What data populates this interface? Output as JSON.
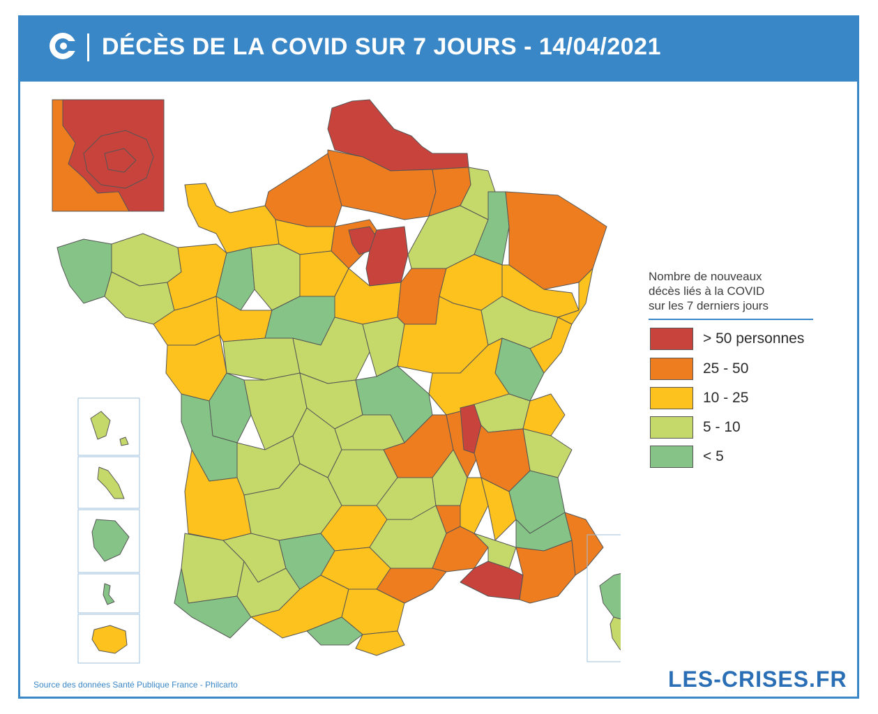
{
  "header": {
    "title": "DÉCÈS DE LA COVID SUR 7 JOURS - 14/04/2021",
    "logo_icon": "les-crises-logo-icon"
  },
  "colors": {
    "header_bg": "#3a87c7",
    "over_50": "#c9433d",
    "c25_50": "#ee7d20",
    "c10_25": "#fdc21e",
    "c5_10": "#c5d96a",
    "under_5": "#85c486",
    "border": "#555555"
  },
  "legend": {
    "title_lines": [
      "Nombre de nouveaux",
      "décès liés à la COVID",
      "sur les 7 derniers jours"
    ],
    "items": [
      {
        "label": "> 50 personnes",
        "color": "#c9433d"
      },
      {
        "label": "25 - 50",
        "color": "#ee7d20"
      },
      {
        "label": "10 - 25",
        "color": "#fdc21e"
      },
      {
        "label": "5 - 10",
        "color": "#c5d96a"
      },
      {
        "label": "< 5",
        "color": "#85c486"
      }
    ]
  },
  "footer": {
    "source": "Source des données Santé Publique France - Philcarto",
    "brand": "LES-CRISES.FR"
  }
}
